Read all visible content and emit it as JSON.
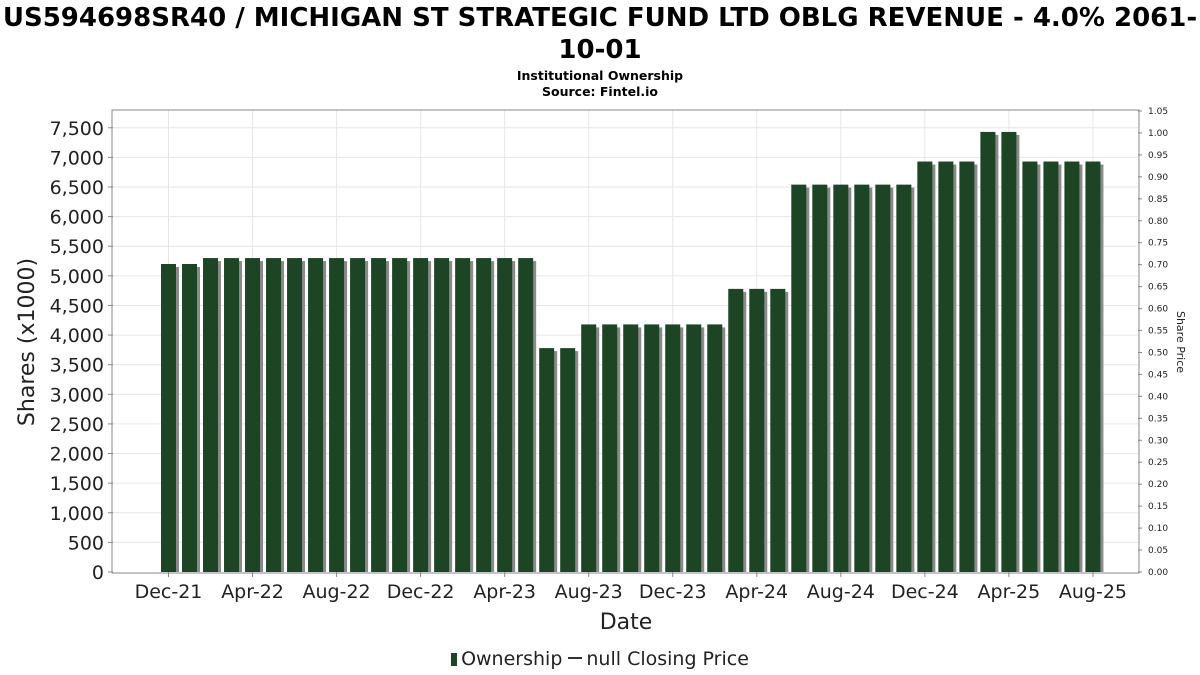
{
  "title": "US594698SR40 / MICHIGAN ST STRATEGIC FUND LTD OBLG REVENUE - 4.0% 2061-10-01",
  "subtitle_line1": "Institutional Ownership",
  "subtitle_line2": "Source: Fintel.io",
  "colors": {
    "bar": "#1c4425",
    "bar_shadow": "#8a8a8a",
    "grid": "#e6e6e6",
    "frame": "#888888"
  },
  "chart_data": {
    "type": "bar",
    "title": "US594698SR40 / MICHIGAN ST STRATEGIC FUND LTD OBLG REVENUE - 4.0% 2061-10-01",
    "xlabel": "Date",
    "ylabel": "Shares (x1000)",
    "y2label": "Share Price",
    "ylim": [
      0,
      7800
    ],
    "y2lim": [
      0,
      1.05
    ],
    "grid": true,
    "legend_position": "bottom",
    "x_tick_labels": [
      "Dec-21",
      "Apr-22",
      "Aug-22",
      "Dec-22",
      "Apr-23",
      "Aug-23",
      "Dec-23",
      "Apr-24",
      "Aug-24",
      "Dec-24",
      "Apr-25",
      "Aug-25"
    ],
    "y_ticks": [
      "0",
      "500",
      "1,000",
      "1,500",
      "2,000",
      "2,500",
      "3,000",
      "3,500",
      "4,000",
      "4,500",
      "5,000",
      "5,500",
      "6,000",
      "6,500",
      "7,000",
      "7,500"
    ],
    "y2_ticks": [
      "0.00",
      "0.05",
      "0.10",
      "0.15",
      "0.20",
      "0.25",
      "0.30",
      "0.35",
      "0.40",
      "0.45",
      "0.50",
      "0.55",
      "0.60",
      "0.65",
      "0.70",
      "0.75",
      "0.80",
      "0.85",
      "0.90",
      "0.95",
      "1.00",
      "1.05"
    ],
    "series": [
      {
        "name": "Ownership",
        "values": [
          5200,
          5200,
          5300,
          5300,
          5300,
          5300,
          5300,
          5300,
          5300,
          5300,
          5300,
          5300,
          5300,
          5300,
          5300,
          5300,
          5300,
          5300,
          3780,
          3780,
          4180,
          4180,
          4180,
          4180,
          4180,
          4180,
          4180,
          4780,
          4780,
          4780,
          6540,
          6540,
          6540,
          6540,
          6540,
          6540,
          6930,
          6930,
          6930,
          7430,
          7430,
          6930,
          6930,
          6930,
          6930
        ]
      },
      {
        "name": "null Closing Price",
        "values": []
      }
    ]
  },
  "legend": {
    "ownership_label": "Ownership",
    "price_label": "null Closing Price"
  }
}
